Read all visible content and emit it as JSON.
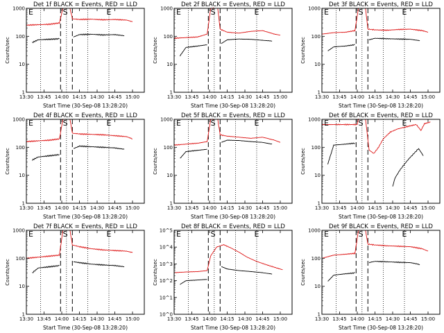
{
  "colors": {
    "events": "#000000",
    "lld": "#dd1111",
    "frame": "#000000",
    "background": "#ffffff"
  },
  "common": {
    "ylabel": "Counts/sec",
    "xlabel": "Start Time (30-Sep-08 13:28:20)",
    "x_ticks": [
      "13:30",
      "13:45",
      "14:00",
      "14:15",
      "14:30",
      "14:45",
      "15:00"
    ],
    "x_tick_minutes": [
      0,
      15,
      30,
      45,
      60,
      75,
      90
    ],
    "markers": [
      "E",
      "S",
      "E"
    ],
    "marker_minutes": [
      0,
      33,
      70
    ],
    "dotted_minutes": [
      12,
      34,
      52,
      70
    ],
    "dashed_minutes": [
      29,
      39
    ]
  },
  "chart_data": [
    {
      "type": "line",
      "title": "Det 1f BLACK = Events, RED = LLD",
      "xlim": [
        0,
        100
      ],
      "ylim": [
        1,
        1000
      ],
      "y_scale": "log",
      "y_ticks": [
        "1",
        "10",
        "100",
        "1000"
      ],
      "series": [
        {
          "name": "Events",
          "segments": [
            {
              "x": [
                5,
                10,
                20,
                28
              ],
              "y": [
                60,
                75,
                78,
                82
              ]
            },
            {
              "x": [
                40,
                45,
                55,
                65,
                75,
                83
              ],
              "y": [
                95,
                115,
                118,
                112,
                115,
                105
              ]
            }
          ]
        },
        {
          "name": "LLD",
          "segments": [
            {
              "x": [
                0,
                10,
                20,
                28,
                31,
                34
              ],
              "y": [
                250,
                260,
                270,
                300,
                1000,
                1000
              ]
            },
            {
              "x": [
                37,
                39,
                45,
                55,
                65,
                75,
                85,
                90
              ],
              "y": [
                1000,
                420,
                400,
                410,
                390,
                400,
                380,
                330
              ]
            }
          ]
        }
      ]
    },
    {
      "type": "line",
      "title": "Det 2f BLACK = Events, RED = LLD",
      "xlim": [
        0,
        100
      ],
      "ylim": [
        1,
        1000
      ],
      "y_scale": "log",
      "y_ticks": [
        "1",
        "10",
        "100",
        "1000"
      ],
      "series": [
        {
          "name": "Events",
          "segments": [
            {
              "x": [
                5,
                10,
                20,
                28
              ],
              "y": [
                20,
                40,
                45,
                50
              ]
            },
            {
              "x": [
                40,
                45,
                55,
                65,
                75,
                83
              ],
              "y": [
                55,
                75,
                80,
                78,
                72,
                68
              ]
            }
          ]
        },
        {
          "name": "LLD",
          "segments": [
            {
              "x": [
                0,
                10,
                20,
                28,
                31,
                34
              ],
              "y": [
                85,
                90,
                95,
                120,
                1000,
                1000
              ]
            },
            {
              "x": [
                37,
                39,
                45,
                55,
                65,
                75,
                85,
                90
              ],
              "y": [
                1000,
                180,
                140,
                130,
                150,
                160,
                120,
                110
              ]
            }
          ]
        }
      ]
    },
    {
      "type": "line",
      "title": "Det 3f BLACK = Events, RED = LLD",
      "xlim": [
        0,
        100
      ],
      "ylim": [
        1,
        1000
      ],
      "y_scale": "log",
      "y_ticks": [
        "1",
        "10",
        "100",
        "1000"
      ],
      "series": [
        {
          "name": "Events",
          "segments": [
            {
              "x": [
                5,
                10,
                20,
                28
              ],
              "y": [
                30,
                42,
                45,
                50
              ]
            },
            {
              "x": [
                40,
                45,
                55,
                65,
                75,
                83
              ],
              "y": [
                75,
                85,
                82,
                80,
                78,
                70
              ]
            }
          ]
        },
        {
          "name": "LLD",
          "segments": [
            {
              "x": [
                0,
                10,
                20,
                28,
                31,
                34
              ],
              "y": [
                120,
                135,
                140,
                160,
                1000,
                1000
              ]
            },
            {
              "x": [
                37,
                39,
                45,
                55,
                65,
                75,
                85,
                90
              ],
              "y": [
                1000,
                180,
                170,
                165,
                175,
                180,
                160,
                140
              ]
            }
          ]
        }
      ]
    },
    {
      "type": "line",
      "title": "Det 4f BLACK = Events, RED = LLD",
      "xlim": [
        0,
        100
      ],
      "ylim": [
        1,
        1000
      ],
      "y_scale": "log",
      "y_ticks": [
        "1",
        "10",
        "100",
        "1000"
      ],
      "series": [
        {
          "name": "Events",
          "segments": [
            {
              "x": [
                5,
                10,
                20,
                28
              ],
              "y": [
                35,
                45,
                50,
                55
              ]
            },
            {
              "x": [
                40,
                45,
                55,
                65,
                75,
                83
              ],
              "y": [
                90,
                110,
                105,
                100,
                95,
                85
              ]
            }
          ]
        },
        {
          "name": "LLD",
          "segments": [
            {
              "x": [
                0,
                10,
                20,
                28,
                31,
                34
              ],
              "y": [
                160,
                170,
                180,
                200,
                1000,
                1000
              ]
            },
            {
              "x": [
                37,
                39,
                45,
                55,
                65,
                75,
                85,
                90
              ],
              "y": [
                1000,
                320,
                300,
                290,
                280,
                260,
                240,
                200
              ]
            }
          ]
        }
      ]
    },
    {
      "type": "line",
      "title": "Det 5f BLACK = Events, RED = LLD",
      "xlim": [
        0,
        100
      ],
      "ylim": [
        1,
        1000
      ],
      "y_scale": "log",
      "y_ticks": [
        "1",
        "10",
        "100",
        "1000"
      ],
      "series": [
        {
          "name": "Events",
          "segments": [
            {
              "x": [
                5,
                10,
                20,
                28
              ],
              "y": [
                40,
                70,
                78,
                85
              ]
            },
            {
              "x": [
                40,
                45,
                55,
                65,
                75,
                83
              ],
              "y": [
                150,
                180,
                175,
                160,
                150,
                130
              ]
            }
          ]
        },
        {
          "name": "LLD",
          "segments": [
            {
              "x": [
                0,
                10,
                20,
                28,
                31,
                34
              ],
              "y": [
                120,
                130,
                140,
                160,
                1000,
                1000
              ]
            },
            {
              "x": [
                37,
                39,
                45,
                55,
                65,
                75,
                85,
                90
              ],
              "y": [
                1000,
                280,
                250,
                230,
                210,
                230,
                180,
                150
              ]
            }
          ]
        }
      ]
    },
    {
      "type": "line",
      "title": "Det 6f BLACK = Events, RED = LLD",
      "xlim": [
        0,
        100
      ],
      "ylim": [
        1,
        1000
      ],
      "y_scale": "log",
      "y_ticks": [
        "1",
        "10",
        "100",
        "1000"
      ],
      "series": [
        {
          "name": "Events",
          "segments": [
            {
              "x": [
                5,
                10,
                20,
                28
              ],
              "y": [
                25,
                120,
                130,
                140
              ]
            },
            {
              "x": [
                60,
                62,
                66,
                70,
                74,
                78,
                82,
                86
              ],
              "y": [
                4,
                8,
                15,
                25,
                40,
                60,
                90,
                50
              ]
            }
          ]
        },
        {
          "name": "LLD",
          "segments": [
            {
              "x": [
                0,
                28,
                30,
                31,
                34
              ],
              "y": [
                650,
                650,
                650,
                1000,
                1000
              ]
            },
            {
              "x": [
                37,
                40,
                44,
                48,
                52,
                58,
                64,
                70,
                76,
                80,
                84,
                87,
                92
              ],
              "y": [
                1000,
                80,
                60,
                100,
                200,
                350,
                450,
                520,
                600,
                650,
                400,
                700,
                800
              ]
            }
          ]
        }
      ]
    },
    {
      "type": "line",
      "title": "Det 7f BLACK = Events, RED = LLD",
      "xlim": [
        0,
        100
      ],
      "ylim": [
        1,
        1000
      ],
      "y_scale": "log",
      "y_ticks": [
        "1",
        "10",
        "100",
        "1000"
      ],
      "series": [
        {
          "name": "Events",
          "segments": [
            {
              "x": [
                5,
                10,
                20,
                28
              ],
              "y": [
                30,
                45,
                50,
                55
              ]
            },
            {
              "x": [
                40,
                45,
                55,
                65,
                75,
                83
              ],
              "y": [
                75,
                70,
                62,
                58,
                55,
                50
              ]
            }
          ]
        },
        {
          "name": "LLD",
          "segments": [
            {
              "x": [
                0,
                10,
                20,
                28,
                31,
                34
              ],
              "y": [
                100,
                110,
                120,
                130,
                1000,
                1000
              ]
            },
            {
              "x": [
                37,
                39,
                45,
                55,
                65,
                75,
                85,
                90
              ],
              "y": [
                1000,
                300,
                260,
                220,
                200,
                190,
                180,
                160
              ]
            }
          ]
        }
      ]
    },
    {
      "type": "line",
      "title": "Det 8f BLACK = Events, RED = LLD",
      "xlim": [
        0,
        100
      ],
      "ylim": [
        1,
        100000
      ],
      "y_scale": "log",
      "y_ticks": [
        "10^0",
        "10^1",
        "10^2",
        "10^3",
        "10^4",
        "10^5"
      ],
      "series": [
        {
          "name": "Events",
          "segments": [
            {
              "x": [
                5,
                10,
                20,
                28
              ],
              "y": [
                60,
                100,
                110,
                120
              ]
            },
            {
              "x": [
                40,
                45,
                55,
                65,
                75,
                83
              ],
              "y": [
                700,
                500,
                400,
                350,
                300,
                250
              ]
            }
          ]
        },
        {
          "name": "LLD",
          "segments": [
            {
              "x": [
                0,
                10,
                20,
                28,
                31,
                36,
                42,
                48,
                55,
                62,
                70,
                78,
                86,
                92
              ],
              "y": [
                300,
                330,
                350,
                400,
                3000,
                10000,
                14000,
                9000,
                5000,
                2500,
                1400,
                900,
                600,
                450
              ]
            }
          ]
        }
      ]
    },
    {
      "type": "line",
      "title": "Det 9f BLACK = Events, RED = LLD",
      "xlim": [
        0,
        100
      ],
      "ylim": [
        1,
        1000
      ],
      "y_scale": "log",
      "y_ticks": [
        "1",
        "10",
        "100",
        "1000"
      ],
      "series": [
        {
          "name": "Events",
          "segments": [
            {
              "x": [
                5,
                10,
                20,
                28
              ],
              "y": [
                15,
                25,
                28,
                30
              ]
            },
            {
              "x": [
                40,
                45,
                55,
                65,
                75,
                83
              ],
              "y": [
                70,
                78,
                75,
                72,
                70,
                60
              ]
            }
          ]
        },
        {
          "name": "LLD",
          "segments": [
            {
              "x": [
                0,
                10,
                20,
                28,
                31,
                34
              ],
              "y": [
                100,
                130,
                140,
                150,
                1000,
                1000
              ]
            },
            {
              "x": [
                37,
                39,
                45,
                55,
                65,
                75,
                85,
                90
              ],
              "y": [
                1000,
                320,
                300,
                280,
                270,
                260,
                220,
                180
              ]
            }
          ]
        }
      ]
    }
  ]
}
